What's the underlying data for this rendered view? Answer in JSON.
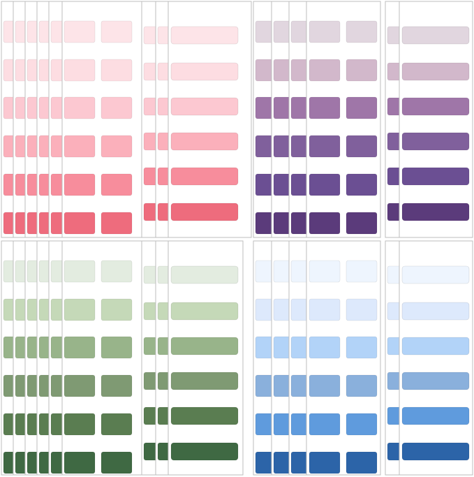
{
  "panels": [
    {
      "style": "stack",
      "colors": [
        "#fde4e8",
        "#fddde2",
        "#fcc8d1",
        "#fbb0bb",
        "#f78d9c",
        "#ee6c7d"
      ]
    },
    {
      "style": "long",
      "colors": [
        "#fde4e8",
        "#fddde2",
        "#fcc8d1",
        "#fbb0bb",
        "#f78d9c",
        "#ee6c7d"
      ]
    },
    {
      "style": "stack",
      "colors": [
        "#e1d6df",
        "#d2b8cb",
        "#9f76a8",
        "#80609c",
        "#6b4f93",
        "#5b3b7b"
      ]
    },
    {
      "style": "long",
      "colors": [
        "#e1d6df",
        "#d2b8cb",
        "#9f76a8",
        "#80609c",
        "#6b4f93",
        "#5b3b7b"
      ]
    },
    {
      "style": "stack",
      "colors": [
        "#e3ece0",
        "#c5d9b8",
        "#98b48a",
        "#7f9a73",
        "#5a7d51",
        "#3f6943"
      ]
    },
    {
      "style": "long",
      "colors": [
        "#e3ece0",
        "#c5d9b8",
        "#98b48a",
        "#7f9a73",
        "#5a7d51",
        "#3f6943"
      ]
    },
    {
      "style": "stack",
      "colors": [
        "#eef5fe",
        "#dde9fc",
        "#b2d3f8",
        "#8ab0dc",
        "#5f9bdd",
        "#2c64a8"
      ]
    },
    {
      "style": "long",
      "colors": [
        "#eef5fe",
        "#dde9fc",
        "#b2d3f8",
        "#8ab0dc",
        "#5f9bdd",
        "#2c64a8"
      ]
    }
  ]
}
